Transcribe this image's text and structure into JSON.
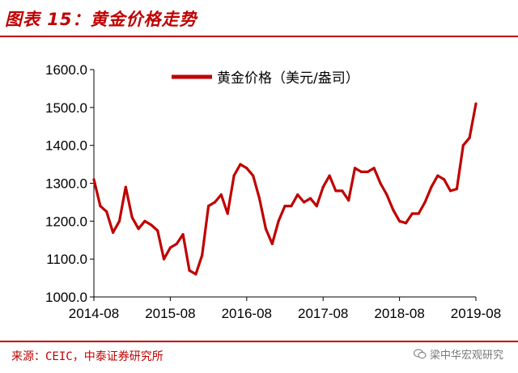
{
  "figure_title": "图表 15：黄金价格走势",
  "source_text": "来源：CEIC，中泰证券研究所",
  "watermark_text": "梁中华宏观研究",
  "colors": {
    "accent": "#c00000",
    "series": "#c00000"
  },
  "chart_data": {
    "type": "line",
    "title": "",
    "xlabel": "",
    "ylabel": "",
    "ylim": [
      1000,
      1600
    ],
    "yticks": [
      "1000.0",
      "1100.0",
      "1200.0",
      "1300.0",
      "1400.0",
      "1500.0",
      "1600.0"
    ],
    "xticks": [
      "2014-08",
      "2015-08",
      "2016-08",
      "2017-08",
      "2018-08",
      "2019-08"
    ],
    "xlim": [
      "2014-08",
      "2019-08"
    ],
    "legend": {
      "placement": "top-left"
    },
    "grid": false,
    "series": [
      {
        "name": "黄金价格（美元/盎司）",
        "x": [
          "2014-08",
          "2014-09",
          "2014-10",
          "2014-11",
          "2014-12",
          "2015-01",
          "2015-02",
          "2015-03",
          "2015-04",
          "2015-05",
          "2015-06",
          "2015-07",
          "2015-08",
          "2015-09",
          "2015-10",
          "2015-11",
          "2015-12",
          "2016-01",
          "2016-02",
          "2016-03",
          "2016-04",
          "2016-05",
          "2016-06",
          "2016-07",
          "2016-08",
          "2016-09",
          "2016-10",
          "2016-11",
          "2016-12",
          "2017-01",
          "2017-02",
          "2017-03",
          "2017-04",
          "2017-05",
          "2017-06",
          "2017-07",
          "2017-08",
          "2017-09",
          "2017-10",
          "2017-11",
          "2017-12",
          "2018-01",
          "2018-02",
          "2018-03",
          "2018-04",
          "2018-05",
          "2018-06",
          "2018-07",
          "2018-08",
          "2018-09",
          "2018-10",
          "2018-11",
          "2018-12",
          "2019-01",
          "2019-02",
          "2019-03",
          "2019-04",
          "2019-05",
          "2019-06",
          "2019-07",
          "2019-08"
        ],
        "values": [
          1310,
          1240,
          1225,
          1170,
          1200,
          1290,
          1210,
          1180,
          1200,
          1190,
          1175,
          1100,
          1130,
          1140,
          1165,
          1070,
          1060,
          1110,
          1240,
          1250,
          1270,
          1220,
          1320,
          1350,
          1340,
          1320,
          1260,
          1180,
          1140,
          1200,
          1240,
          1240,
          1270,
          1250,
          1260,
          1240,
          1290,
          1320,
          1280,
          1280,
          1255,
          1340,
          1330,
          1330,
          1340,
          1300,
          1270,
          1230,
          1200,
          1195,
          1220,
          1220,
          1250,
          1290,
          1320,
          1310,
          1280,
          1285,
          1400,
          1420,
          1510
        ]
      }
    ]
  }
}
